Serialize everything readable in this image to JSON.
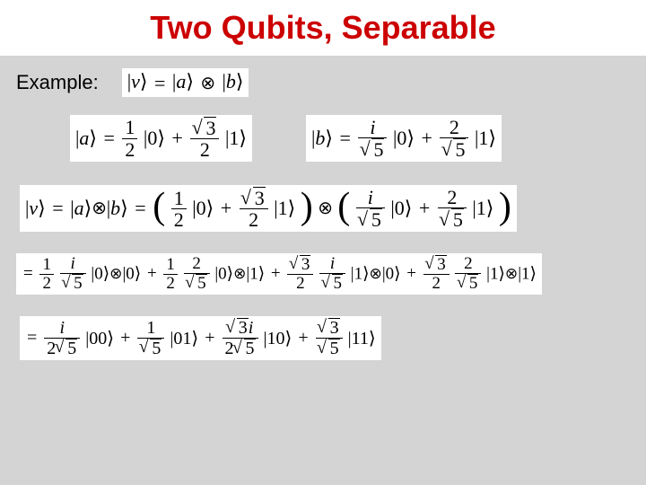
{
  "title": "Two Qubits, Separable",
  "label_example": "Example:",
  "colors": {
    "title_color": "#cc0000",
    "title_bg": "#ffffff",
    "page_bg": "#d4d4d4",
    "box_bg": "#ffffff",
    "text": "#000000"
  },
  "typography": {
    "title_font": "Arial",
    "title_size_pt": 28,
    "title_weight": "bold",
    "body_font": "Arial",
    "math_font": "Times New Roman",
    "example_label_size_pt": 17
  },
  "eq1": {
    "lhs_var": "v",
    "rhs_a": "a",
    "rhs_b": "b"
  },
  "eqA": {
    "var": "a",
    "c0_num": "1",
    "c0_den": "2",
    "c1_num_sqrt": "3",
    "c1_den": "2"
  },
  "eqB": {
    "var": "b",
    "c0_num": "i",
    "c0_den_sqrt": "5",
    "c1_num": "2",
    "c1_den_sqrt": "5"
  },
  "eq_tensor": {
    "lhs_var": "v",
    "a_c0_num": "1",
    "a_c0_den": "2",
    "a_c1_num_sqrt": "3",
    "a_c1_den": "2",
    "b_c0_num": "i",
    "b_c0_den_sqrt": "5",
    "b_c1_num": "2",
    "b_c1_den_sqrt": "5"
  },
  "eq_expanded": {
    "t1_a_num": "1",
    "t1_a_den": "2",
    "t1_b_num": "i",
    "t1_b_den_sqrt": "5",
    "t1_k1": "0",
    "t1_k2": "0",
    "t2_a_num": "1",
    "t2_a_den": "2",
    "t2_b_num": "2",
    "t2_b_den_sqrt": "5",
    "t2_k1": "0",
    "t2_k2": "1",
    "t3_a_num_sqrt": "3",
    "t3_a_den": "2",
    "t3_b_num": "i",
    "t3_b_den_sqrt": "5",
    "t3_k1": "1",
    "t3_k2": "0",
    "t4_a_num_sqrt": "3",
    "t4_a_den": "2",
    "t4_b_num": "2",
    "t4_b_den_sqrt": "5",
    "t4_k1": "1",
    "t4_k2": "1"
  },
  "eq_final": {
    "c00_num": "i",
    "c00_den_pre": "2",
    "c00_den_sqrt": "5",
    "k00": "00",
    "c01_num": "1",
    "c01_den_sqrt": "5",
    "k01": "01",
    "c10_num_sqrt": "3",
    "c10_num_post": "i",
    "c10_den_pre": "2",
    "c10_den_sqrt": "5",
    "k10": "10",
    "c11_num_sqrt": "3",
    "c11_den_sqrt": "5",
    "k11": "11"
  },
  "kets": {
    "zero": "0",
    "one": "1"
  },
  "symbols": {
    "plus": "+",
    "eq": "=",
    "tensor": "⊗",
    "pipe": "|",
    "rangle": "⟩"
  }
}
